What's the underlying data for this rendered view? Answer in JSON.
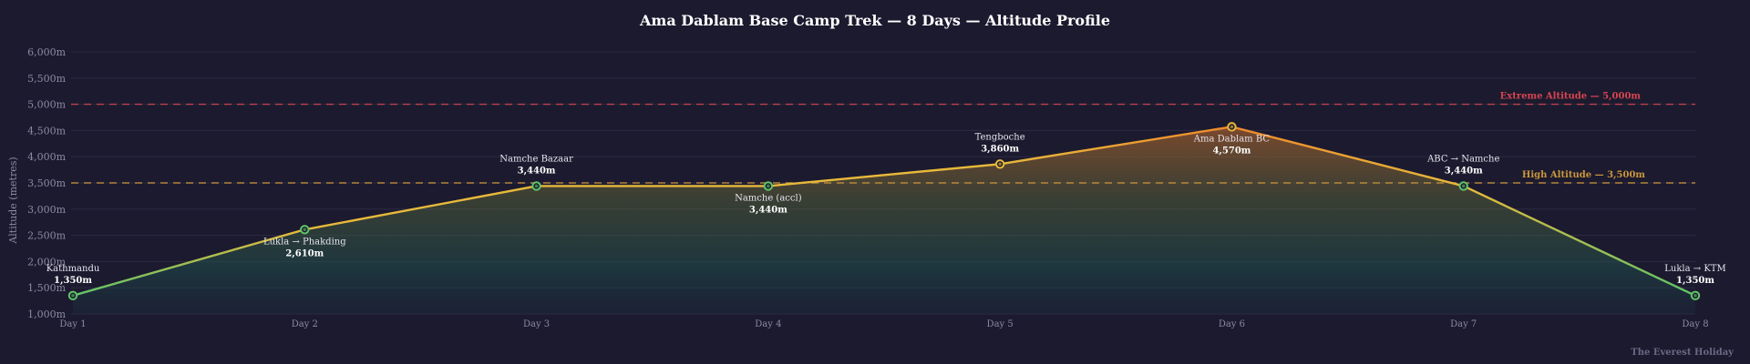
{
  "chart_data": {
    "type": "area",
    "title": "Ama Dablam Base Camp Trek — 8 Days — Altitude Profile",
    "ylabel": "Altitude (metres)",
    "xlabel": "",
    "categories": [
      "Day 1",
      "Day 2",
      "Day 3",
      "Day 4",
      "Day 5",
      "Day 6",
      "Day 7",
      "Day 8"
    ],
    "ylim": [
      1000,
      6000
    ],
    "y_ticks": [
      1000,
      1500,
      2000,
      2500,
      3000,
      3500,
      4000,
      4500,
      5000,
      5500,
      6000
    ],
    "y_tick_labels": [
      "1,000m",
      "1,500m",
      "2,000m",
      "2,500m",
      "3,000m",
      "3,500m",
      "4,000m",
      "4,500m",
      "5,000m",
      "5,500m",
      "6,000m"
    ],
    "grid": true,
    "series": [
      {
        "values": [
          1350,
          2610,
          3440,
          3440,
          3860,
          4570,
          3440,
          1350
        ]
      }
    ],
    "points": [
      {
        "day": "Day 1",
        "place": "Kathmandu",
        "altitude": 1350,
        "altitude_label": "1,350m",
        "label_pos": "above"
      },
      {
        "day": "Day 2",
        "place": "Lukla → Phakding",
        "altitude": 2610,
        "altitude_label": "2,610m",
        "label_pos": "below"
      },
      {
        "day": "Day 3",
        "place": "Namche Bazaar",
        "altitude": 3440,
        "altitude_label": "3,440m",
        "label_pos": "above"
      },
      {
        "day": "Day 4",
        "place": "Namche (accl)",
        "altitude": 3440,
        "altitude_label": "3,440m",
        "label_pos": "below"
      },
      {
        "day": "Day 5",
        "place": "Tengboche",
        "altitude": 3860,
        "altitude_label": "3,860m",
        "label_pos": "above"
      },
      {
        "day": "Day 6",
        "place": "Ama Dablam BC",
        "altitude": 4570,
        "altitude_label": "4,570m",
        "label_pos": "below"
      },
      {
        "day": "Day 7",
        "place": "ABC → Namche",
        "altitude": 3440,
        "altitude_label": "3,440m",
        "label_pos": "above"
      },
      {
        "day": "Day 8",
        "place": "Lukla → KTM",
        "altitude": 1350,
        "altitude_label": "1,350m",
        "label_pos": "above"
      }
    ],
    "reference_lines": [
      {
        "label": "Extreme Altitude — 5,000m",
        "value": 5000,
        "color": "#d64550"
      },
      {
        "label": "High Altitude — 3,500m",
        "value": 3500,
        "color": "#c9963c"
      }
    ]
  },
  "watermark": "The Everest Holiday",
  "colors": {
    "background": "#1c1a2e",
    "grid": "#2c2a42",
    "axis_text": "#8d8aa3",
    "label_text": "#e6e4ef",
    "title_text": "#ffffff",
    "line_low": "#5ec469",
    "line_mid": "#e7b93b",
    "line_high": "#ee8a2c",
    "marker_low": "#5ec469",
    "marker_high": "#e7b93b"
  }
}
